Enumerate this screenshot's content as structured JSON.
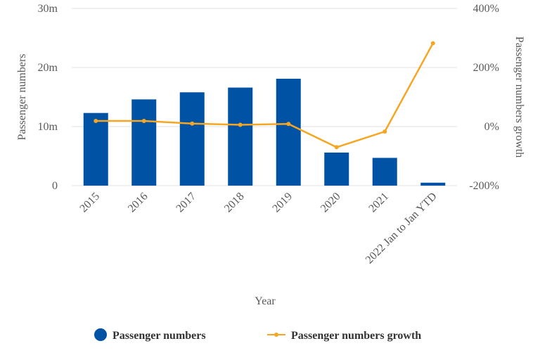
{
  "chart_data": {
    "type": "bar+line",
    "title": "",
    "categories": [
      "2015",
      "2016",
      "2017",
      "2018",
      "2019",
      "2020",
      "2021",
      "2022 Jan to Jan YTD"
    ],
    "series": [
      {
        "name": "Passenger numbers",
        "type": "bar",
        "axis": "left",
        "color": "#0052a5",
        "values": [
          12.3,
          14.6,
          15.8,
          16.6,
          18.1,
          5.6,
          4.7,
          0.5
        ]
      },
      {
        "name": "Passenger numbers growth",
        "type": "line",
        "axis": "right",
        "color": "#f5a623",
        "values": [
          19,
          19,
          10,
          6,
          9,
          -70,
          -17,
          282
        ]
      }
    ],
    "xlabel": "Year",
    "ylabel": "Passenger numbers",
    "y2label": "Passenger numbers growth",
    "ylim": [
      0,
      30
    ],
    "y2lim": [
      -200,
      400
    ],
    "yticks": [
      "0",
      "10m",
      "20m",
      "30m"
    ],
    "y2ticks": [
      "-200%",
      "0%",
      "200%",
      "400%"
    ],
    "grid": true,
    "legend_position": "bottom"
  }
}
